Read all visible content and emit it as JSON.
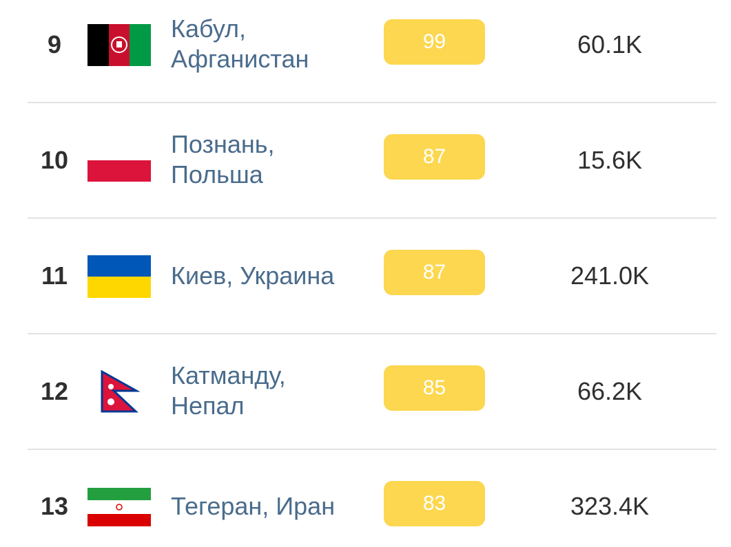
{
  "rows": [
    {
      "rank": "9",
      "city": "Кабул,",
      "country": "Афганистан",
      "score": "99",
      "count": "60.1K",
      "flag_icon": "afghanistan-flag-icon"
    },
    {
      "rank": "10",
      "city": "Познань,",
      "country": "Польша",
      "score": "87",
      "count": "15.6K",
      "flag_icon": "poland-flag-icon"
    },
    {
      "rank": "11",
      "city": "Киев, Украина",
      "country": "",
      "score": "87",
      "count": "241.0K",
      "flag_icon": "ukraine-flag-icon"
    },
    {
      "rank": "12",
      "city": "Катманду,",
      "country": "Непал",
      "score": "85",
      "count": "66.2K",
      "flag_icon": "nepal-flag-icon"
    },
    {
      "rank": "13",
      "city": "Тегеран, Иран",
      "country": "",
      "score": "83",
      "count": "323.4K",
      "flag_icon": "iran-flag-icon"
    }
  ],
  "colors": {
    "score_badge": "#fcd74f",
    "city_link": "#4a6c8c",
    "text": "#2f2f2f",
    "divider": "#e3e3e3"
  }
}
